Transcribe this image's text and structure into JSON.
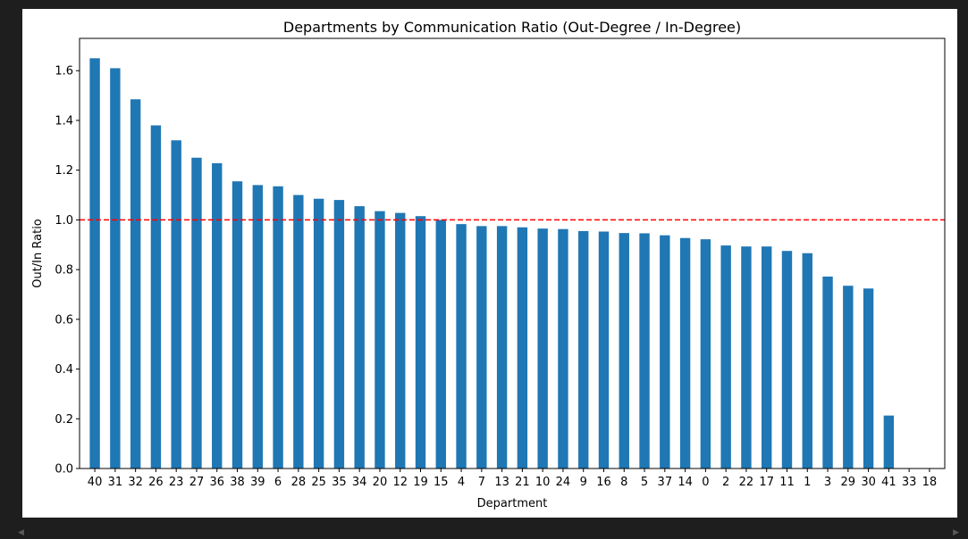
{
  "chart_data": {
    "type": "bar",
    "title": "Departments by Communication Ratio (Out-Degree / In-Degree)",
    "xlabel": "Department",
    "ylabel": "Out/In Ratio",
    "ylim": [
      0,
      1.73
    ],
    "yticks": [
      "0.0",
      "0.2",
      "0.4",
      "0.6",
      "0.8",
      "1.0",
      "1.2",
      "1.4",
      "1.6"
    ],
    "categories": [
      "40",
      "31",
      "32",
      "26",
      "23",
      "27",
      "36",
      "38",
      "39",
      "6",
      "28",
      "25",
      "35",
      "34",
      "20",
      "12",
      "19",
      "15",
      "4",
      "7",
      "13",
      "21",
      "10",
      "24",
      "9",
      "16",
      "8",
      "5",
      "37",
      "14",
      "0",
      "2",
      "22",
      "17",
      "11",
      "1",
      "3",
      "29",
      "30",
      "41",
      "33",
      "18"
    ],
    "values": [
      1.65,
      1.61,
      1.485,
      1.38,
      1.32,
      1.25,
      1.228,
      1.155,
      1.14,
      1.135,
      1.1,
      1.085,
      1.08,
      1.055,
      1.035,
      1.028,
      1.015,
      1.0,
      0.983,
      0.975,
      0.975,
      0.97,
      0.965,
      0.963,
      0.955,
      0.953,
      0.947,
      0.946,
      0.938,
      0.927,
      0.922,
      0.897,
      0.893,
      0.893,
      0.875,
      0.866,
      0.772,
      0.735,
      0.724,
      0.213,
      0,
      0
    ],
    "bar_color": "#1f77b4",
    "reference_line": {
      "value": 1.0,
      "color": "#ff0000",
      "style": "dashed"
    },
    "grid": false,
    "legend": "none"
  },
  "scroll_arrows": {
    "left": "◀",
    "right": "▶"
  }
}
